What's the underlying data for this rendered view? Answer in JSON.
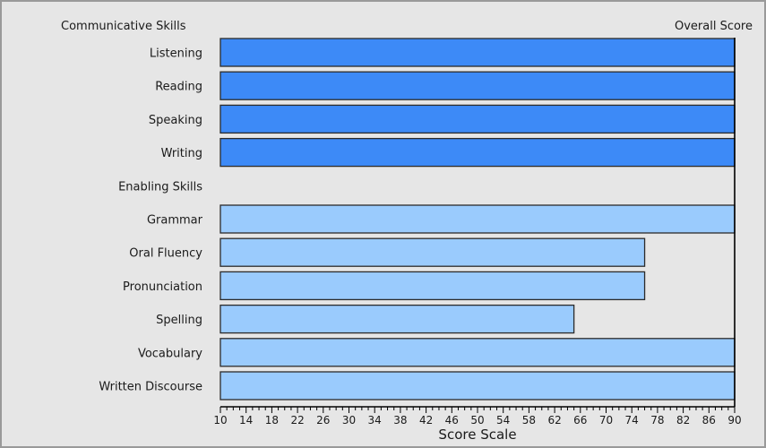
{
  "chart_data": {
    "type": "bar",
    "orientation": "horizontal",
    "left_header": "Communicative Skills",
    "right_header": "Overall Score",
    "xlabel": "Score Scale",
    "xlim": [
      10,
      90
    ],
    "xticks": [
      10,
      14,
      18,
      22,
      26,
      30,
      34,
      38,
      42,
      46,
      50,
      54,
      58,
      62,
      66,
      70,
      74,
      78,
      82,
      86,
      90
    ],
    "grid": false,
    "rows": [
      {
        "label": "Listening",
        "value": 90,
        "group": "communicative"
      },
      {
        "label": "Reading",
        "value": 90,
        "group": "communicative"
      },
      {
        "label": "Speaking",
        "value": 90,
        "group": "communicative"
      },
      {
        "label": "Writing",
        "value": 90,
        "group": "communicative"
      },
      {
        "label": "Enabling Skills",
        "value": null,
        "group": "header"
      },
      {
        "label": "Grammar",
        "value": 90,
        "group": "enabling"
      },
      {
        "label": "Oral Fluency",
        "value": 76,
        "group": "enabling"
      },
      {
        "label": "Pronunciation",
        "value": 76,
        "group": "enabling"
      },
      {
        "label": "Spelling",
        "value": 65,
        "group": "enabling"
      },
      {
        "label": "Vocabulary",
        "value": 90,
        "group": "enabling"
      },
      {
        "label": "Written Discourse",
        "value": 90,
        "group": "enabling"
      }
    ],
    "colors": {
      "communicative": "#3d8af7",
      "enabling": "#9acbfd",
      "bar_border": "#2b2b2b",
      "background": "#e6e6e6"
    }
  }
}
